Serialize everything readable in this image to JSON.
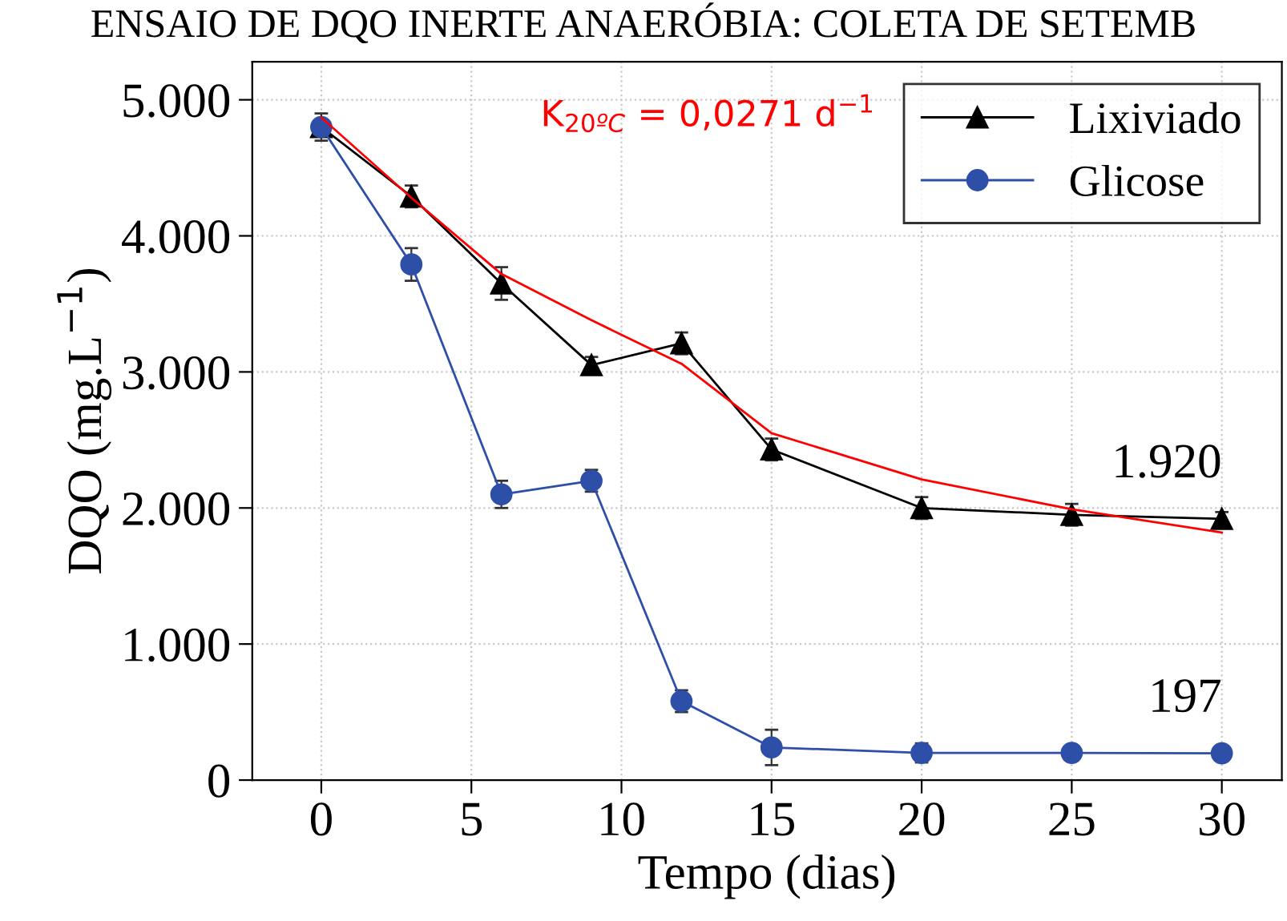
{
  "chart_data": {
    "type": "line",
    "title": "ENSAIO DE DQO INERTE ANAERÓBIA: COLETA DE SETEMB",
    "xlabel": "Tempo (dias)",
    "ylabel": "DQO (mg.L$^{−1}$)",
    "x": [
      0,
      3,
      6,
      9,
      12,
      15,
      20,
      25,
      30
    ],
    "series": [
      {
        "name": "Lixiviado",
        "color": "#000000",
        "marker": "triangle",
        "values": [
          4800,
          4290,
          3650,
          3050,
          3210,
          2430,
          2000,
          1950,
          1920
        ],
        "errors": [
          100,
          80,
          120,
          60,
          80,
          80,
          80,
          80,
          50
        ]
      },
      {
        "name": "Glicose",
        "color": "#2e4fa8",
        "marker": "circle",
        "values": [
          4800,
          3790,
          2100,
          2200,
          580,
          240,
          200,
          200,
          197
        ],
        "errors": [
          null,
          120,
          100,
          80,
          80,
          130,
          70,
          null,
          null
        ]
      },
      {
        "type": "line",
        "color": "#ff0000",
        "marker": "none",
        "x": [
          0,
          3,
          6,
          9,
          12,
          15,
          20,
          25,
          30
        ],
        "values": [
          4870,
          4280,
          3720,
          3380,
          3060,
          2550,
          2210,
          1990,
          1820
        ]
      }
    ],
    "annotations": [
      {
        "text": "1.920",
        "x": 30,
        "y": 1920
      },
      {
        "text": "197",
        "x": 30,
        "y": 197
      },
      "K$_{20ºC}$ = 0,0271 d$^{−1}$"
    ],
    "xlim": [
      -2.3,
      32
    ],
    "ylim": [
      0,
      5280
    ],
    "xticks": [
      0,
      5,
      10,
      15,
      20,
      25,
      30
    ],
    "yticks": [
      {
        "value": 0,
        "label": "0"
      },
      {
        "value": 1000,
        "label": "1.000"
      },
      {
        "value": 2000,
        "label": "2.000"
      },
      {
        "value": 3000,
        "label": "3.000"
      },
      {
        "value": 4000,
        "label": "4.000"
      },
      {
        "value": 5000,
        "label": "5.000"
      }
    ],
    "grid": true,
    "legend": "top right"
  }
}
